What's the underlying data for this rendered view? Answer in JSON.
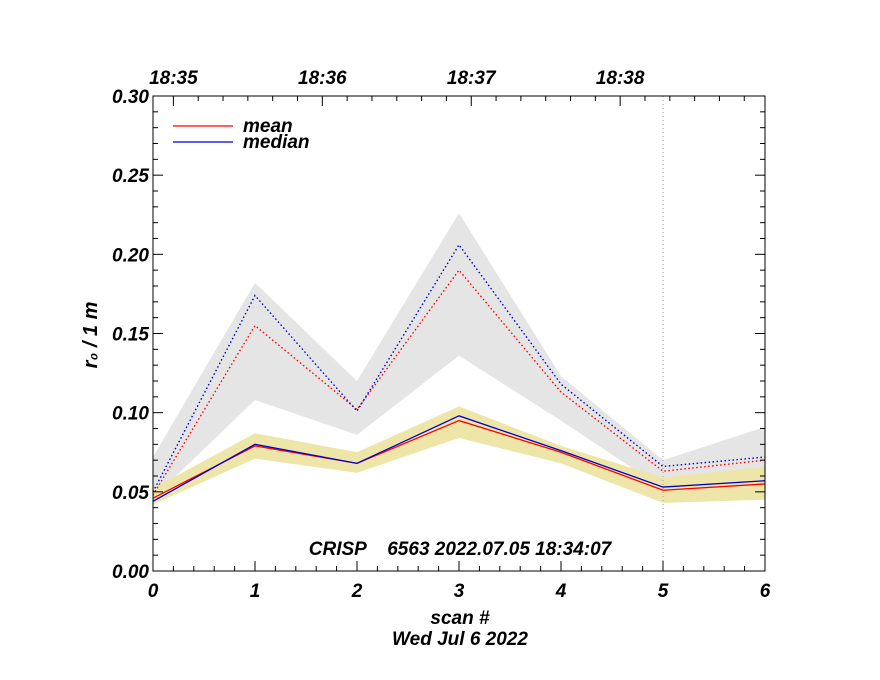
{
  "chart_data": {
    "type": "line",
    "title": "",
    "xlabel": "scan #",
    "ylabel": "r₀ / 1 m",
    "subtitle_date": "Wed Jul  6 2022",
    "annotation": "CRISP    6563 2022.07.05 18:34:07",
    "xlim": [
      0,
      6
    ],
    "ylim": [
      0.0,
      0.3
    ],
    "x_ticks": [
      0,
      1,
      2,
      3,
      4,
      5,
      6
    ],
    "x_tick_labels": [
      "0",
      "1",
      "2",
      "3",
      "4",
      "5",
      "6"
    ],
    "y_ticks": [
      0.0,
      0.05,
      0.1,
      0.15,
      0.2,
      0.25,
      0.3
    ],
    "y_tick_labels": [
      "0.00",
      "0.05",
      "0.10",
      "0.15",
      "0.20",
      "0.25",
      "0.30"
    ],
    "top_axis": {
      "positions": [
        0.2,
        1.66,
        3.12,
        4.58
      ],
      "labels": [
        "18:35",
        "18:36",
        "18:37",
        "18:38"
      ]
    },
    "vline_x": 5,
    "x": [
      0,
      1,
      2,
      3,
      4,
      5,
      6
    ],
    "series": [
      {
        "name": "mean",
        "style": "solid",
        "color": "#ff0000",
        "values": [
          0.046,
          0.079,
          0.068,
          0.095,
          0.075,
          0.051,
          0.055
        ]
      },
      {
        "name": "median",
        "style": "solid",
        "color": "#0000cc",
        "values": [
          0.044,
          0.08,
          0.068,
          0.098,
          0.076,
          0.053,
          0.057
        ]
      },
      {
        "name": "mean (dotted)",
        "style": "dotted",
        "color": "#ff0000",
        "values": [
          0.048,
          0.155,
          0.102,
          0.19,
          0.113,
          0.063,
          0.07
        ]
      },
      {
        "name": "median (dotted)",
        "style": "dotted",
        "color": "#0000cc",
        "values": [
          0.05,
          0.174,
          0.101,
          0.206,
          0.118,
          0.066,
          0.072
        ]
      }
    ],
    "bands": [
      {
        "name": "dotted-spread",
        "color": "#e5e5e5",
        "upper": [
          0.072,
          0.182,
          0.12,
          0.226,
          0.123,
          0.07,
          0.091
        ],
        "lower": [
          0.046,
          0.108,
          0.086,
          0.136,
          0.095,
          0.052,
          0.061
        ]
      },
      {
        "name": "solid-spread",
        "color": "#ede6a8",
        "upper": [
          0.052,
          0.087,
          0.075,
          0.104,
          0.079,
          0.059,
          0.066
        ],
        "lower": [
          0.042,
          0.071,
          0.062,
          0.084,
          0.068,
          0.043,
          0.045
        ]
      }
    ],
    "legend": [
      {
        "label": "mean",
        "color": "#ff0000"
      },
      {
        "label": "median",
        "color": "#0000cc"
      }
    ],
    "legend_position": "top-left",
    "grid": false
  }
}
